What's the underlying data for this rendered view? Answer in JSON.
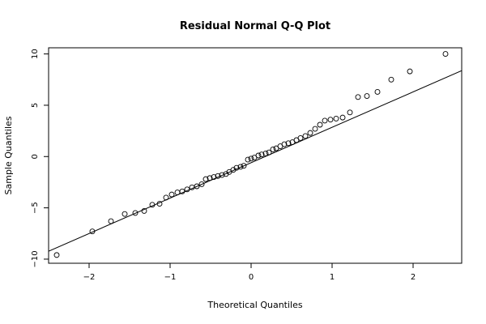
{
  "chart_data": {
    "type": "scatter",
    "title": "Residual Normal Q-Q Plot",
    "xlabel": "Theoretical Quantiles",
    "ylabel": "Sample Quantiles",
    "xlim": [
      -2.5,
      2.6
    ],
    "ylim": [
      -10.4,
      10.6
    ],
    "x_ticks": [
      -2,
      -1,
      0,
      1,
      2
    ],
    "y_ticks": [
      -10,
      -5,
      0,
      5,
      10
    ],
    "grid": false,
    "points": {
      "x": [
        -2.4,
        -1.96,
        -1.73,
        -1.56,
        -1.43,
        -1.32,
        -1.22,
        -1.13,
        -1.05,
        -0.98,
        -0.91,
        -0.85,
        -0.79,
        -0.73,
        -0.67,
        -0.61,
        -0.56,
        -0.51,
        -0.46,
        -0.41,
        -0.36,
        -0.31,
        -0.27,
        -0.22,
        -0.18,
        -0.13,
        -0.09,
        -0.04,
        0.0,
        0.04,
        0.09,
        0.13,
        0.18,
        0.22,
        0.27,
        0.31,
        0.36,
        0.41,
        0.46,
        0.51,
        0.56,
        0.61,
        0.67,
        0.73,
        0.79,
        0.85,
        0.91,
        0.98,
        1.05,
        1.13,
        1.22,
        1.32,
        1.43,
        1.56,
        1.73,
        1.96,
        2.4
      ],
      "y": [
        -9.6,
        -7.3,
        -6.3,
        -5.6,
        -5.5,
        -5.3,
        -4.7,
        -4.6,
        -4.0,
        -3.7,
        -3.5,
        -3.4,
        -3.2,
        -3.0,
        -2.9,
        -2.7,
        -2.2,
        -2.1,
        -2.0,
        -1.9,
        -1.8,
        -1.7,
        -1.5,
        -1.3,
        -1.1,
        -1.0,
        -0.9,
        -0.3,
        -0.2,
        -0.1,
        0.1,
        0.2,
        0.3,
        0.4,
        0.7,
        0.8,
        1.0,
        1.2,
        1.3,
        1.4,
        1.6,
        1.8,
        2.0,
        2.3,
        2.7,
        3.1,
        3.5,
        3.6,
        3.7,
        3.8,
        4.3,
        5.8,
        5.9,
        6.3,
        7.5,
        8.3,
        10.0
      ]
    },
    "reference_line": {
      "slope": 3.45,
      "intercept": -0.6
    }
  }
}
